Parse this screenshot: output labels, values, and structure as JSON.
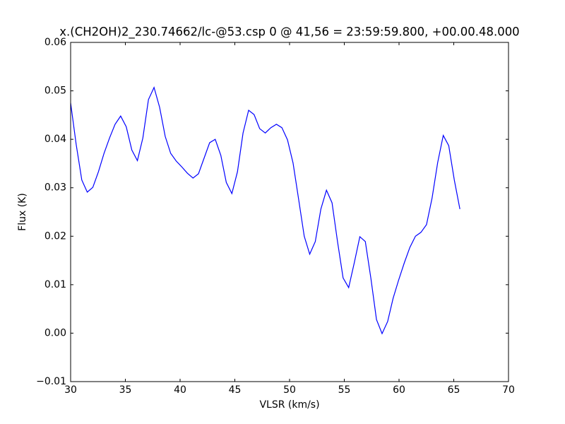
{
  "chart_data": {
    "type": "line",
    "title": "x.(CH2OH)2_230.74662/lc-@53.csp 0 @ 41,56 = 23:59:59.800, +00.00.48.000",
    "x_label": "VLSR (km/s)",
    "y_label": "Flux (K)",
    "x": [
      30.0,
      30.51,
      31.02,
      31.52,
      32.03,
      32.54,
      33.05,
      33.56,
      34.06,
      34.57,
      35.08,
      35.59,
      36.1,
      36.6,
      37.11,
      37.62,
      38.13,
      38.64,
      39.14,
      39.65,
      40.16,
      40.67,
      41.18,
      41.68,
      42.19,
      42.7,
      43.21,
      43.72,
      44.22,
      44.73,
      45.24,
      45.75,
      46.26,
      46.76,
      47.27,
      47.78,
      48.29,
      48.8,
      49.3,
      49.81,
      50.32,
      50.83,
      51.34,
      51.84,
      52.35,
      52.86,
      53.37,
      53.88,
      54.38,
      54.89,
      55.4,
      55.91,
      56.42,
      56.92,
      57.43,
      57.94,
      58.45,
      58.96,
      59.46,
      59.97,
      60.48,
      60.99,
      61.5,
      62.0,
      62.51,
      63.02,
      63.53,
      64.04,
      64.54,
      65.05,
      65.56
    ],
    "series": [
      {
        "color": "#0000ff",
        "values": [
          0.0475,
          0.0389,
          0.0316,
          0.0291,
          0.0301,
          0.0333,
          0.0371,
          0.0403,
          0.0431,
          0.0448,
          0.0426,
          0.0378,
          0.0356,
          0.0403,
          0.0482,
          0.0507,
          0.0466,
          0.0406,
          0.0371,
          0.0355,
          0.0343,
          0.033,
          0.032,
          0.0329,
          0.0361,
          0.0393,
          0.04,
          0.0367,
          0.0311,
          0.0288,
          0.0333,
          0.0413,
          0.046,
          0.0451,
          0.0422,
          0.0413,
          0.0424,
          0.0431,
          0.0424,
          0.0399,
          0.0351,
          0.0276,
          0.02,
          0.0163,
          0.0189,
          0.0256,
          0.0295,
          0.0269,
          0.0189,
          0.0114,
          0.0094,
          0.0145,
          0.0199,
          0.0189,
          0.0113,
          0.0028,
          -0.0001,
          0.0024,
          0.0072,
          0.011,
          0.0145,
          0.0177,
          0.02,
          0.0208,
          0.0224,
          0.0279,
          0.0352,
          0.0408,
          0.0387,
          0.0316,
          0.0256
        ]
      }
    ],
    "xlim": [
      30,
      70
    ],
    "xticks": [
      30,
      35,
      40,
      45,
      50,
      55,
      60,
      65,
      70
    ],
    "ylim": [
      -0.01,
      0.06
    ],
    "yticks": [
      {
        "value": -0.01,
        "label": "−0.01"
      },
      {
        "value": 0,
        "label": "0.00"
      },
      0.01,
      0.02,
      0.03,
      0.04,
      0.05,
      0.06
    ],
    "grid": false
  }
}
